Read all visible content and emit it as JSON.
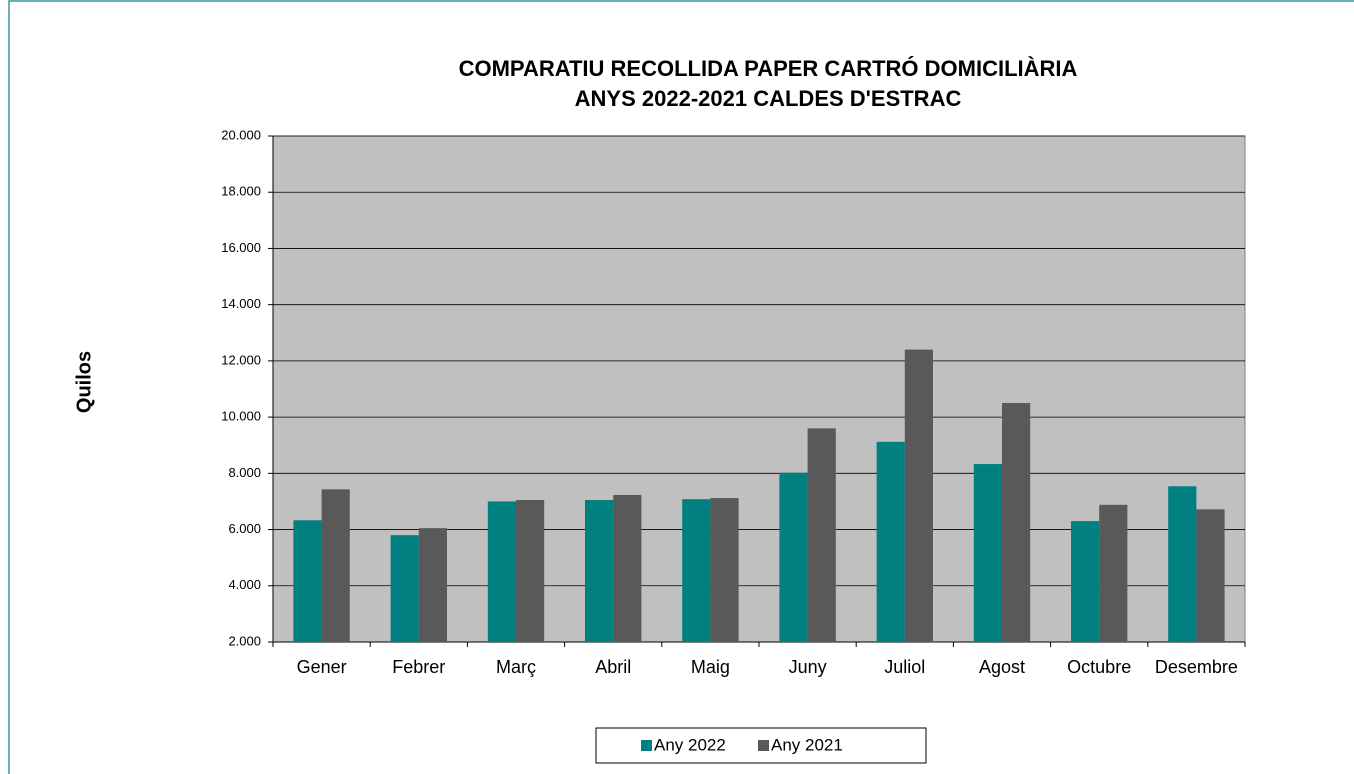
{
  "chart_data": {
    "type": "bar",
    "title": [
      "COMPARATIU RECOLLIDA PAPER CARTRÓ DOMICILIÀRIA",
      "ANYS 2022-2021 CALDES D'ESTRAC"
    ],
    "y_label": "Quilos",
    "categories": [
      "Gener",
      "Febrer",
      "Març",
      "Abril",
      "Maig",
      "Juny",
      "Juliol",
      "Agost",
      "Octubre",
      "Desembre"
    ],
    "series": [
      {
        "name": "Any 2022",
        "color": "#008080",
        "values": [
          6330,
          5800,
          7000,
          7050,
          7080,
          8020,
          9120,
          8330,
          6300,
          7540
        ]
      },
      {
        "name": "Any 2021",
        "color": "#595959",
        "values": [
          7430,
          6050,
          7050,
          7230,
          7120,
          9600,
          12400,
          10500,
          6880,
          6720
        ]
      }
    ],
    "ylim": [
      2000,
      20000
    ],
    "yticks": [
      {
        "value": 2000,
        "label": "2.000"
      },
      {
        "value": 4000,
        "label": "4.000"
      },
      {
        "value": 6000,
        "label": "6.000"
      },
      {
        "value": 8000,
        "label": "8.000"
      },
      {
        "value": 10000,
        "label": "10.000"
      },
      {
        "value": 12000,
        "label": "12.000"
      },
      {
        "value": 14000,
        "label": "14.000"
      },
      {
        "value": 16000,
        "label": "16.000"
      },
      {
        "value": 18000,
        "label": "18.000"
      },
      {
        "value": 20000,
        "label": "20.000"
      }
    ],
    "grid": true,
    "plot_background": "#c0c0c0",
    "legend": "bottom"
  }
}
